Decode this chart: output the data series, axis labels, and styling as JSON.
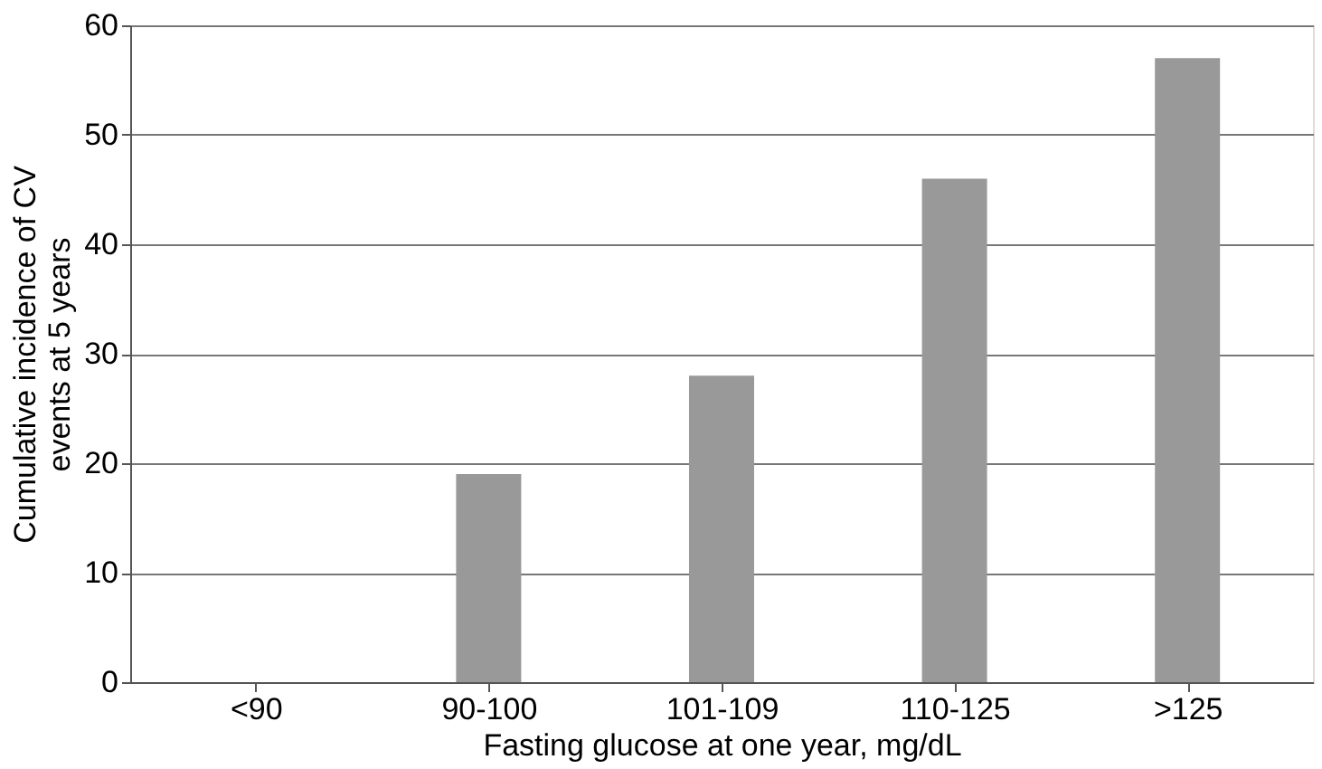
{
  "chart_data": {
    "type": "bar",
    "xlabel": "Fasting glucose at one year, mg/dL",
    "ylabel": "Cumulative incidence of CV events at 5 years",
    "categories": [
      "<90",
      "90-100",
      "101-109",
      "110-125",
      ">125"
    ],
    "values": [
      0,
      19,
      28,
      46,
      57
    ],
    "color": "#999999",
    "ylim": [
      0,
      60
    ],
    "yticks": [
      0,
      10,
      20,
      30,
      40,
      50,
      60
    ],
    "grid": "y"
  }
}
